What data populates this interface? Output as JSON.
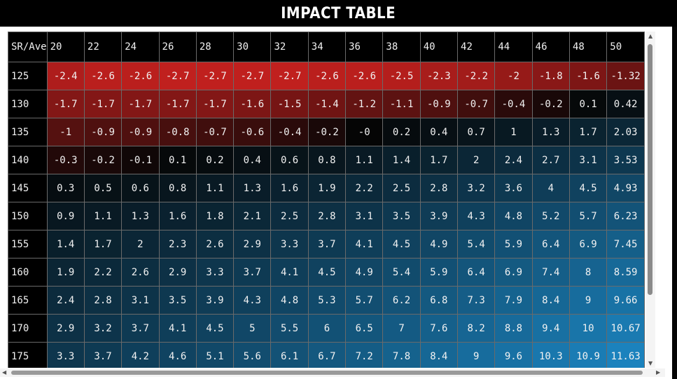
{
  "title": "IMPACT TABLE",
  "table": {
    "corner_label": "SR/Ave",
    "columns": [
      "20",
      "22",
      "24",
      "26",
      "28",
      "30",
      "32",
      "34",
      "36",
      "38",
      "40",
      "42",
      "44",
      "46",
      "48",
      "50"
    ],
    "rows": [
      {
        "label": "125",
        "values": [
          "-2.4",
          "-2.6",
          "-2.6",
          "-2.7",
          "-2.7",
          "-2.7",
          "-2.7",
          "-2.6",
          "-2.6",
          "-2.5",
          "-2.3",
          "-2.2",
          "-2",
          "-1.8",
          "-1.6",
          "-1.32"
        ]
      },
      {
        "label": "130",
        "values": [
          "-1.7",
          "-1.7",
          "-1.7",
          "-1.7",
          "-1.7",
          "-1.6",
          "-1.5",
          "-1.4",
          "-1.2",
          "-1.1",
          "-0.9",
          "-0.7",
          "-0.4",
          "-0.2",
          "0.1",
          "0.42"
        ]
      },
      {
        "label": "135",
        "values": [
          "-1",
          "-0.9",
          "-0.9",
          "-0.8",
          "-0.7",
          "-0.6",
          "-0.4",
          "-0.2",
          "-0",
          "0.2",
          "0.4",
          "0.7",
          "1",
          "1.3",
          "1.7",
          "2.03"
        ]
      },
      {
        "label": "140",
        "values": [
          "-0.3",
          "-0.2",
          "-0.1",
          "0.1",
          "0.2",
          "0.4",
          "0.6",
          "0.8",
          "1.1",
          "1.4",
          "1.7",
          "2",
          "2.4",
          "2.7",
          "3.1",
          "3.53"
        ]
      },
      {
        "label": "145",
        "values": [
          "0.3",
          "0.5",
          "0.6",
          "0.8",
          "1.1",
          "1.3",
          "1.6",
          "1.9",
          "2.2",
          "2.5",
          "2.8",
          "3.2",
          "3.6",
          "4",
          "4.5",
          "4.93"
        ]
      },
      {
        "label": "150",
        "values": [
          "0.9",
          "1.1",
          "1.3",
          "1.6",
          "1.8",
          "2.1",
          "2.5",
          "2.8",
          "3.1",
          "3.5",
          "3.9",
          "4.3",
          "4.8",
          "5.2",
          "5.7",
          "6.23"
        ]
      },
      {
        "label": "155",
        "values": [
          "1.4",
          "1.7",
          "2",
          "2.3",
          "2.6",
          "2.9",
          "3.3",
          "3.7",
          "4.1",
          "4.5",
          "4.9",
          "5.4",
          "5.9",
          "6.4",
          "6.9",
          "7.45"
        ]
      },
      {
        "label": "160",
        "values": [
          "1.9",
          "2.2",
          "2.6",
          "2.9",
          "3.3",
          "3.7",
          "4.1",
          "4.5",
          "4.9",
          "5.4",
          "5.9",
          "6.4",
          "6.9",
          "7.4",
          "8",
          "8.59"
        ]
      },
      {
        "label": "165",
        "values": [
          "2.4",
          "2.8",
          "3.1",
          "3.5",
          "3.9",
          "4.3",
          "4.8",
          "5.3",
          "5.7",
          "6.2",
          "6.8",
          "7.3",
          "7.9",
          "8.4",
          "9",
          "9.66"
        ]
      },
      {
        "label": "170",
        "values": [
          "2.9",
          "3.2",
          "3.7",
          "4.1",
          "4.5",
          "5",
          "5.5",
          "6",
          "6.5",
          "7",
          "7.6",
          "8.2",
          "8.8",
          "9.4",
          "10",
          "10.67"
        ]
      },
      {
        "label": "175",
        "values": [
          "3.3",
          "3.7",
          "4.2",
          "4.6",
          "5.1",
          "5.6",
          "6.1",
          "6.7",
          "7.2",
          "7.8",
          "8.4",
          "9",
          "9.6",
          "10.3",
          "10.9",
          "11.63"
        ]
      }
    ]
  },
  "colors": {
    "negative": "#c0201e",
    "neutral": "#050505",
    "positive": "#1b82bd",
    "text": "#f2f2f2",
    "grid": "#6a6a6a"
  },
  "icons": {
    "scroll_up": "▲",
    "scroll_down": "▼",
    "scroll_left": "◀",
    "scroll_right": "▶"
  }
}
